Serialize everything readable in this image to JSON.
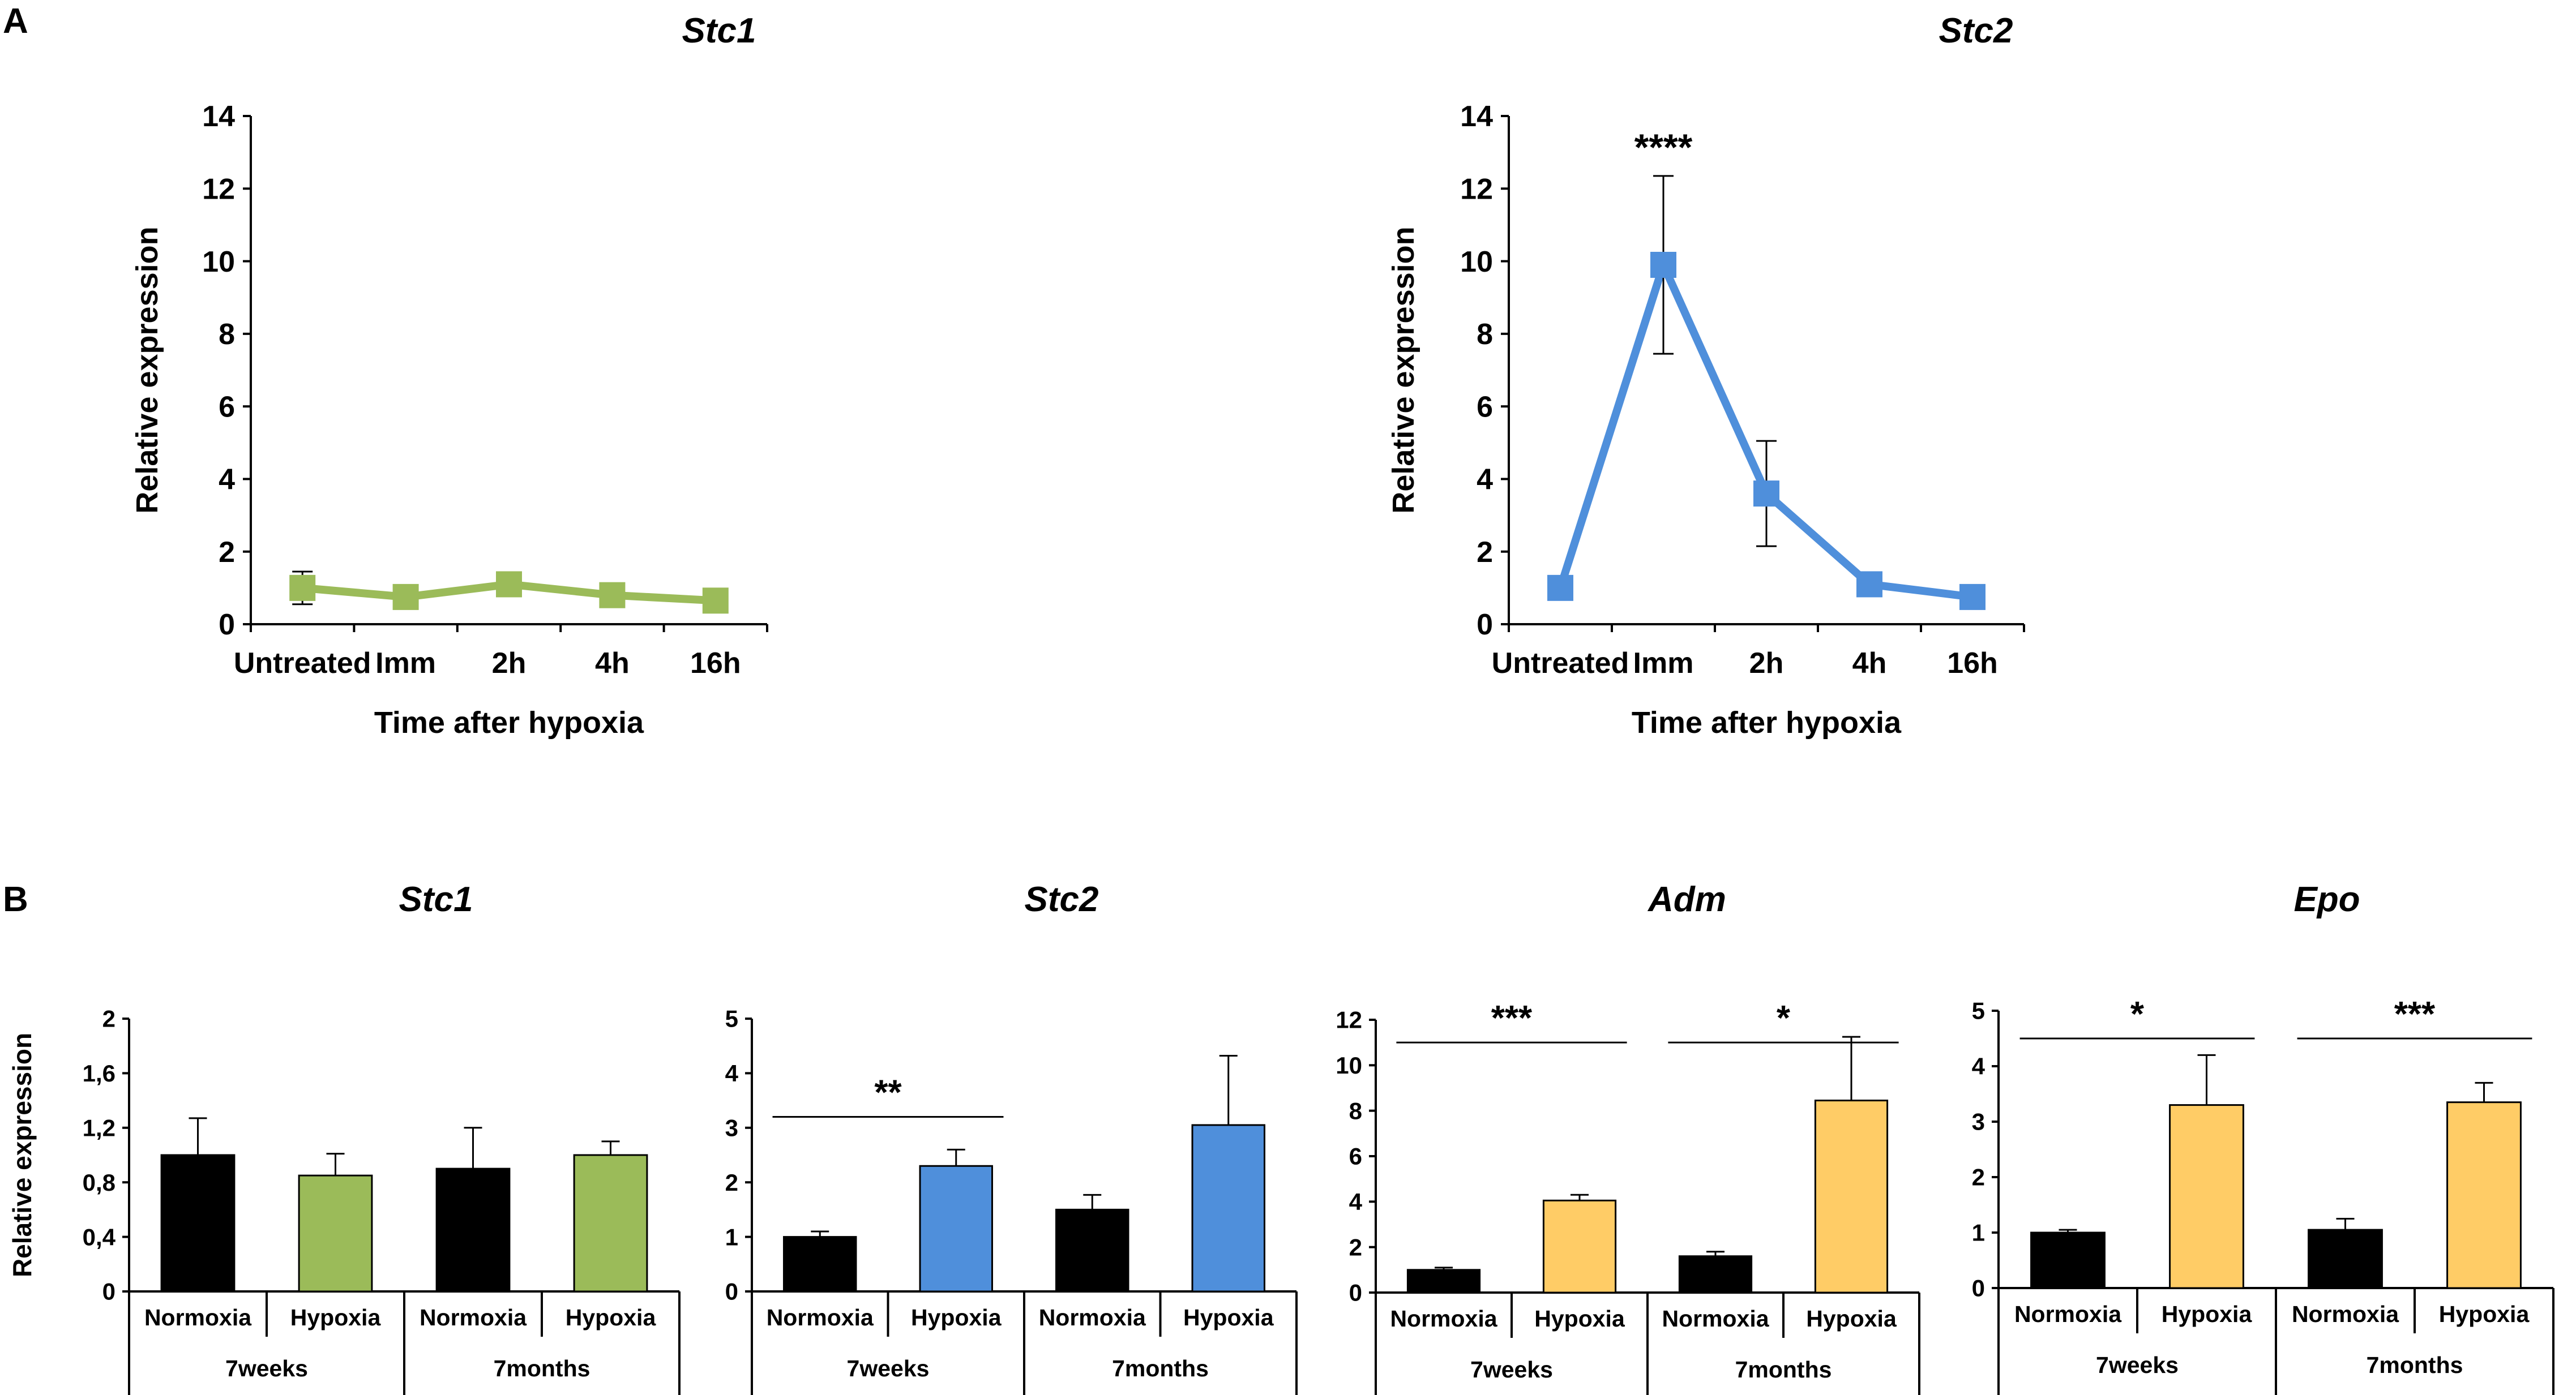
{
  "panels": {
    "a": "A",
    "b": "B"
  },
  "chart_data": [
    {
      "type": "line",
      "panel": "A",
      "title": "Stc1",
      "xlabel": "Time after hypoxia",
      "ylabel": "Relative expression",
      "categories": [
        "Untreated",
        "Imm",
        "2h",
        "4h",
        "16h"
      ],
      "yticks": [
        "0",
        "2",
        "4",
        "6",
        "8",
        "10",
        "12",
        "14"
      ],
      "ylim": [
        0,
        14
      ],
      "values": [
        1.0,
        0.75,
        1.1,
        0.8,
        0.65
      ],
      "errors": [
        0.45,
        0.0,
        0.0,
        0.0,
        0.0
      ],
      "color": "#9BBB59",
      "annotations": []
    },
    {
      "type": "line",
      "panel": "A",
      "title": "Stc2",
      "xlabel": "Time after hypoxia",
      "ylabel": "Relative expression",
      "categories": [
        "Untreated",
        "Imm",
        "2h",
        "4h",
        "16h"
      ],
      "yticks": [
        "0",
        "2",
        "4",
        "6",
        "8",
        "10",
        "12",
        "14"
      ],
      "ylim": [
        0,
        14
      ],
      "values": [
        1.0,
        9.9,
        3.6,
        1.1,
        0.75
      ],
      "errors": [
        0.0,
        2.45,
        1.45,
        0.0,
        0.0
      ],
      "color": "#4F8FDB",
      "annotations": [
        {
          "index": 1,
          "text": "****"
        }
      ]
    },
    {
      "type": "bar",
      "panel": "B",
      "title": "Stc1",
      "ylabel": "Relative expression",
      "categories": [
        "Normoxia",
        "Hypoxia",
        "Normoxia",
        "Hypoxia"
      ],
      "groups": [
        "7weeks",
        "7months"
      ],
      "yticks": [
        "0",
        "0,4",
        "0,8",
        "1,2",
        "1,6",
        "2"
      ],
      "ylim": [
        0,
        2
      ],
      "values": [
        1.0,
        0.85,
        0.9,
        1.0
      ],
      "errors": [
        0.27,
        0.16,
        0.3,
        0.1
      ],
      "colors": [
        "#000000",
        "#9BBB59",
        "#000000",
        "#9BBB59"
      ],
      "significance": []
    },
    {
      "type": "bar",
      "panel": "B",
      "title": "Stc2",
      "ylabel": "",
      "categories": [
        "Normoxia",
        "Hypoxia",
        "Normoxia",
        "Hypoxia"
      ],
      "groups": [
        "7weeks",
        "7months"
      ],
      "yticks": [
        "0",
        "1",
        "2",
        "3",
        "4",
        "5"
      ],
      "ylim": [
        0,
        5
      ],
      "values": [
        1.0,
        2.3,
        1.5,
        3.05
      ],
      "errors": [
        0.1,
        0.3,
        0.27,
        1.27
      ],
      "colors": [
        "#000000",
        "#4F8FDB",
        "#000000",
        "#4F8FDB"
      ],
      "significance": [
        {
          "from": 0,
          "to": 1,
          "y": 3.2,
          "text": "**"
        }
      ]
    },
    {
      "type": "bar",
      "panel": "B",
      "title": "Adm",
      "ylabel": "",
      "categories": [
        "Normoxia",
        "Hypoxia",
        "Normoxia",
        "Hypoxia"
      ],
      "groups": [
        "7weeks",
        "7months"
      ],
      "yticks": [
        "0",
        "2",
        "4",
        "6",
        "8",
        "10",
        "12"
      ],
      "ylim": [
        0,
        12
      ],
      "values": [
        1.0,
        4.05,
        1.6,
        8.45
      ],
      "errors": [
        0.1,
        0.25,
        0.2,
        2.8
      ],
      "colors": [
        "#000000",
        "#FFCC66",
        "#000000",
        "#FFCC66"
      ],
      "significance": [
        {
          "from": 0,
          "to": 1,
          "y": 11.0,
          "text": "***"
        },
        {
          "from": 2,
          "to": 3,
          "y": 11.0,
          "text": "*"
        }
      ]
    },
    {
      "type": "bar",
      "panel": "B",
      "title": "Epo",
      "ylabel": "",
      "categories": [
        "Normoxia",
        "Hypoxia",
        "Normoxia",
        "Hypoxia"
      ],
      "groups": [
        "7weeks",
        "7months"
      ],
      "yticks": [
        "0",
        "1",
        "2",
        "3",
        "4",
        "5"
      ],
      "ylim": [
        0,
        5
      ],
      "values": [
        1.0,
        3.3,
        1.05,
        3.35
      ],
      "errors": [
        0.05,
        0.9,
        0.2,
        0.35
      ],
      "colors": [
        "#000000",
        "#FFCC66",
        "#000000",
        "#FFCC66"
      ],
      "significance": [
        {
          "from": 0,
          "to": 1,
          "y": 4.5,
          "text": "*"
        },
        {
          "from": 2,
          "to": 3,
          "y": 4.5,
          "text": "***"
        }
      ]
    }
  ]
}
